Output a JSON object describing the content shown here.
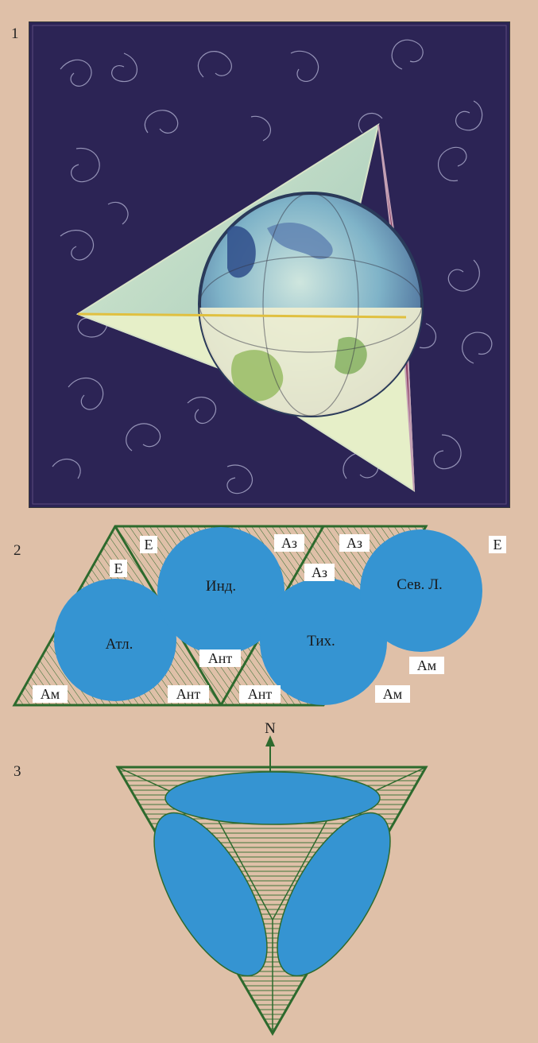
{
  "panels": {
    "panel1_number": "1",
    "panel2_number": "2",
    "panel3_number": "3"
  },
  "colors": {
    "background": "#dfc0a8",
    "ocean": "#3594d2",
    "outline": "#2d6a2d",
    "painting_bg": "#2c2455"
  },
  "diagram2": {
    "oceans": {
      "atlantic": "Атл.",
      "indian": "Инд.",
      "pacific": "Тих.",
      "arctic": "Сев. Л."
    },
    "continents": {
      "europe_1": "Е",
      "europe_2": "Е",
      "europe_3": "Е",
      "asia_1": "Аз",
      "asia_2": "Аз",
      "asia_3": "Аз",
      "antarctica_1": "Ант",
      "antarctica_2": "Ант",
      "antarctica_3": "Ант",
      "america_1": "Ам",
      "america_2": "Ам",
      "america_3": "Ам"
    }
  },
  "diagram3": {
    "north_label": "N"
  }
}
